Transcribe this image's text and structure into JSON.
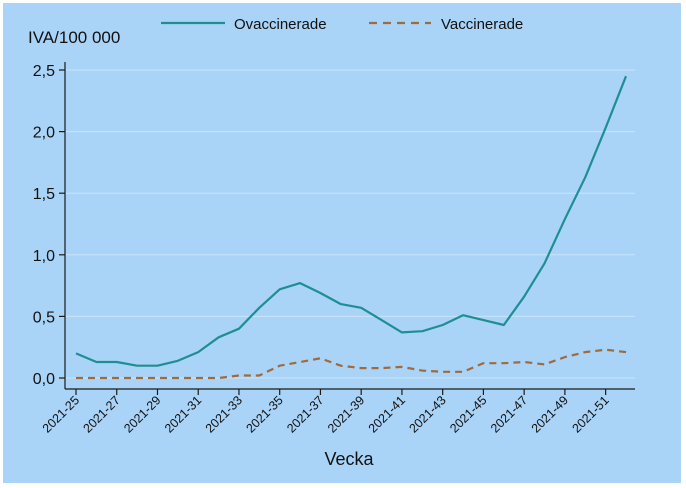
{
  "colors": {
    "background": "#a9d4f7",
    "grid": "#c9e4fb",
    "axis": "#1a1a1a",
    "text": "#111111",
    "ovaccinerade": "#1f8e93",
    "vaccinerade": "#a06a3b"
  },
  "chart_data": {
    "type": "line",
    "title": "",
    "ylabel": "IVA/100 000",
    "xlabel": "Vecka",
    "ylim": [
      0,
      2.5
    ],
    "yticks": [
      "0,0",
      "0,5",
      "1,0",
      "1,5",
      "2,0",
      "2,5"
    ],
    "ytick_values": [
      0,
      0.5,
      1.0,
      1.5,
      2.0,
      2.5
    ],
    "x": [
      "2021-25",
      "2021-26",
      "2021-27",
      "2021-28",
      "2021-29",
      "2021-30",
      "2021-31",
      "2021-32",
      "2021-33",
      "2021-34",
      "2021-35",
      "2021-36",
      "2021-37",
      "2021-38",
      "2021-39",
      "2021-40",
      "2021-41",
      "2021-42",
      "2021-43",
      "2021-44",
      "2021-45",
      "2021-46",
      "2021-47",
      "2021-48",
      "2021-49",
      "2021-50",
      "2021-51",
      "2021-52"
    ],
    "xticks": [
      "2021-25",
      "2021-27",
      "2021-29",
      "2021-31",
      "2021-33",
      "2021-35",
      "2021-37",
      "2021-39",
      "2021-41",
      "2021-43",
      "2021-45",
      "2021-47",
      "2021-49",
      "2021-51"
    ],
    "grid": true,
    "legend_position": "top",
    "series": [
      {
        "name": "Ovaccinerade",
        "style": "solid",
        "values": [
          0.2,
          0.13,
          0.13,
          0.1,
          0.1,
          0.14,
          0.21,
          0.33,
          0.4,
          0.57,
          0.72,
          0.77,
          0.69,
          0.6,
          0.57,
          0.47,
          0.37,
          0.38,
          0.43,
          0.51,
          0.47,
          0.43,
          0.66,
          0.93,
          1.29,
          1.63,
          2.03,
          2.45
        ]
      },
      {
        "name": "Vaccinerade",
        "style": "dashed",
        "values": [
          0.0,
          0.0,
          0.0,
          0.0,
          0.0,
          0.0,
          0.0,
          0.0,
          0.02,
          0.02,
          0.1,
          0.13,
          0.16,
          0.1,
          0.08,
          0.08,
          0.09,
          0.06,
          0.05,
          0.05,
          0.12,
          0.12,
          0.13,
          0.11,
          0.17,
          0.21,
          0.23,
          0.21
        ]
      }
    ]
  }
}
